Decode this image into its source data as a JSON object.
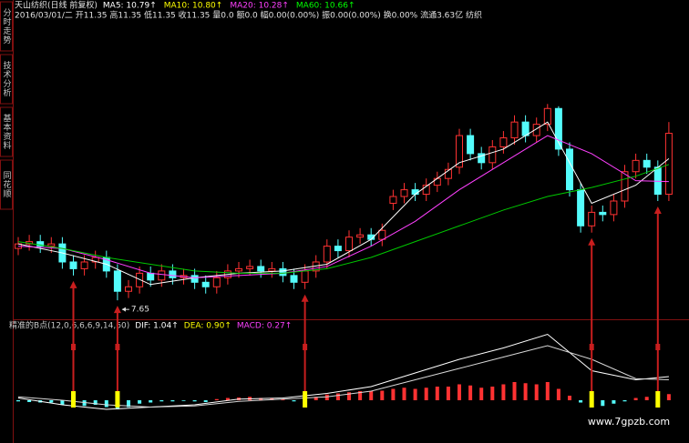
{
  "chart_data": {
    "type": "candlestick",
    "title": "天山纺织(日线 前复权)",
    "legend": [
      {
        "text": "MA5: 10.79↑",
        "color": "#ffffff"
      },
      {
        "text": "MA10: 10.80↑",
        "color": "#ffff00"
      },
      {
        "text": "MA20: 10.28↑",
        "color": "#ff40ff"
      },
      {
        "text": "MA60: 10.66↑",
        "color": "#00ff00"
      }
    ],
    "subtitle": "2016/03/01/二 开11.35 高11.35 低11.35 收11.35 量0.0 额0.0 幅0.00(0.00%) 振0.00(0.00%) 换0.00% 流通3.63亿 纺织",
    "tabs": [
      "分时走势",
      "技术分析",
      "基本资料",
      "同花顺"
    ],
    "ylim": [
      7.25,
      13.8
    ],
    "up_color": "#ff3232",
    "down_color": "#54fcfc",
    "open": [
      8.8,
      8.9,
      8.95,
      8.85,
      8.9,
      8.5,
      8.35,
      8.5,
      8.6,
      8.3,
      7.85,
      7.95,
      8.25,
      8.1,
      8.3,
      8.15,
      8.2,
      8.05,
      7.95,
      8.15,
      8.3,
      8.35,
      8.4,
      8.3,
      8.35,
      8.2,
      8.05,
      8.3,
      8.5,
      8.85,
      8.75,
      9.05,
      9.1,
      9.0,
      9.8,
      9.95,
      10.1,
      10.0,
      10.2,
      10.35,
      10.6,
      11.3,
      10.9,
      10.7,
      11.05,
      11.25,
      11.6,
      11.3,
      11.55,
      11.9,
      11.0,
      10.1,
      9.3,
      9.6,
      9.55,
      9.85,
      10.5,
      10.75,
      10.6,
      10.0
    ],
    "high": [
      9.05,
      9.1,
      9.1,
      9.05,
      9.05,
      8.65,
      8.65,
      8.75,
      8.75,
      8.45,
      8.1,
      8.4,
      8.4,
      8.45,
      8.45,
      8.35,
      8.35,
      8.2,
      8.3,
      8.45,
      8.5,
      8.55,
      8.55,
      8.5,
      8.5,
      8.35,
      8.45,
      8.65,
      9.0,
      9.0,
      9.2,
      9.25,
      9.25,
      9.35,
      10.1,
      10.25,
      10.25,
      10.35,
      10.5,
      10.7,
      11.45,
      11.45,
      11.05,
      11.2,
      11.4,
      11.75,
      11.75,
      11.7,
      12.0,
      11.95,
      11.15,
      10.25,
      9.75,
      9.75,
      10.0,
      10.65,
      10.9,
      10.9,
      10.75,
      11.6
    ],
    "low": [
      8.65,
      8.75,
      8.7,
      8.7,
      8.35,
      8.2,
      8.2,
      8.35,
      8.15,
      7.65,
      7.7,
      7.8,
      7.95,
      7.95,
      8.0,
      8.0,
      7.9,
      7.8,
      7.8,
      8.0,
      8.15,
      8.2,
      8.15,
      8.15,
      8.05,
      7.9,
      7.9,
      8.15,
      8.35,
      8.6,
      8.6,
      8.9,
      8.85,
      8.85,
      9.65,
      9.8,
      9.85,
      9.85,
      10.05,
      10.2,
      10.45,
      10.75,
      10.55,
      10.55,
      10.9,
      11.1,
      11.15,
      11.15,
      11.4,
      10.85,
      9.95,
      9.15,
      9.15,
      9.4,
      9.4,
      9.7,
      10.35,
      10.45,
      9.85,
      9.85
    ],
    "close": [
      8.9,
      8.95,
      8.85,
      8.9,
      8.5,
      8.35,
      8.5,
      8.6,
      8.3,
      7.85,
      7.95,
      8.25,
      8.1,
      8.3,
      8.15,
      8.2,
      8.05,
      7.95,
      8.15,
      8.3,
      8.35,
      8.4,
      8.3,
      8.35,
      8.2,
      8.05,
      8.3,
      8.5,
      8.85,
      8.75,
      9.05,
      9.1,
      9.0,
      9.2,
      9.95,
      10.1,
      10.0,
      10.2,
      10.35,
      10.55,
      11.3,
      10.9,
      10.7,
      11.05,
      11.25,
      11.6,
      11.3,
      11.55,
      11.9,
      11.0,
      10.1,
      9.3,
      9.6,
      9.55,
      9.85,
      10.5,
      10.75,
      10.6,
      10.0,
      11.35
    ],
    "ma_lines": [
      {
        "color": "#ffffff",
        "x": [
          0,
          4,
          8,
          12,
          16,
          20,
          24,
          28,
          32,
          36,
          40,
          44,
          48,
          52,
          56,
          59
        ],
        "values": [
          8.9,
          8.7,
          8.45,
          8.0,
          8.15,
          8.25,
          8.3,
          8.45,
          9.0,
          10.0,
          10.7,
          11.0,
          11.6,
          9.8,
          10.2,
          10.79
        ]
      },
      {
        "color": "#ff40ff",
        "x": [
          0,
          4,
          8,
          12,
          16,
          20,
          24,
          28,
          32,
          36,
          40,
          44,
          48,
          52,
          56,
          59
        ],
        "values": [
          8.85,
          8.8,
          8.55,
          8.25,
          8.15,
          8.2,
          8.25,
          8.4,
          8.85,
          9.4,
          10.1,
          10.7,
          11.3,
          10.9,
          10.3,
          10.28
        ]
      },
      {
        "color": "#00c800",
        "x": [
          0,
          4,
          8,
          12,
          16,
          20,
          24,
          28,
          32,
          36,
          40,
          44,
          48,
          52,
          56,
          59
        ],
        "values": [
          8.95,
          8.8,
          8.6,
          8.45,
          8.3,
          8.25,
          8.25,
          8.35,
          8.6,
          8.95,
          9.3,
          9.65,
          9.95,
          10.15,
          10.4,
          10.66
        ]
      }
    ],
    "annotation": "7.65",
    "annotation_index": 9,
    "signals": [
      5,
      9,
      26,
      52,
      58
    ],
    "signal_color": "#ffff00",
    "arrow_color": "#c81e1e",
    "indicator": {
      "labels": [
        {
          "text": "精准的B点(12,0,6,6,6,9,14,60)",
          "color": "#c8c8c8"
        },
        {
          "text": "DIF: 1.04↑",
          "color": "#ffffff"
        },
        {
          "text": "DEA: 0.90↑",
          "color": "#ffff00"
        },
        {
          "text": "MACD: 0.27↑",
          "color": "#ff40ff"
        }
      ],
      "ylim": [
        -0.6,
        3.6
      ],
      "histogram": [
        -0.05,
        -0.08,
        -0.1,
        -0.1,
        -0.2,
        -0.3,
        -0.25,
        -0.2,
        -0.3,
        -0.4,
        -0.3,
        -0.15,
        -0.1,
        -0.05,
        -0.05,
        -0.03,
        -0.05,
        -0.08,
        0.05,
        0.1,
        0.12,
        0.15,
        0.1,
        0.1,
        0.05,
        -0.05,
        0.05,
        0.15,
        0.25,
        0.3,
        0.35,
        0.4,
        0.4,
        0.42,
        0.5,
        0.55,
        0.5,
        0.55,
        0.6,
        0.6,
        0.7,
        0.65,
        0.55,
        0.6,
        0.7,
        0.8,
        0.75,
        0.7,
        0.8,
        0.5,
        0.2,
        -0.1,
        -0.2,
        -0.25,
        -0.15,
        -0.05,
        0.1,
        0.15,
        0.05,
        0.27
      ],
      "lines": [
        {
          "color": "#ffffff",
          "x": [
            0,
            4,
            8,
            12,
            16,
            20,
            24,
            28,
            32,
            36,
            40,
            44,
            48,
            52,
            56,
            59
          ],
          "values": [
            0.1,
            -0.2,
            -0.4,
            -0.3,
            -0.2,
            0.05,
            0.1,
            0.3,
            0.6,
            1.2,
            1.8,
            2.3,
            2.9,
            1.3,
            0.9,
            1.04
          ]
        },
        {
          "color": "#d8d8d8",
          "x": [
            0,
            4,
            8,
            12,
            16,
            20,
            24,
            28,
            32,
            36,
            40,
            44,
            48,
            52,
            56,
            59
          ],
          "values": [
            0.15,
            0.0,
            -0.2,
            -0.3,
            -0.25,
            -0.05,
            0.05,
            0.15,
            0.4,
            0.9,
            1.4,
            1.9,
            2.4,
            1.8,
            0.95,
            0.9
          ]
        }
      ]
    },
    "watermark": "www.7gpzb.com"
  }
}
